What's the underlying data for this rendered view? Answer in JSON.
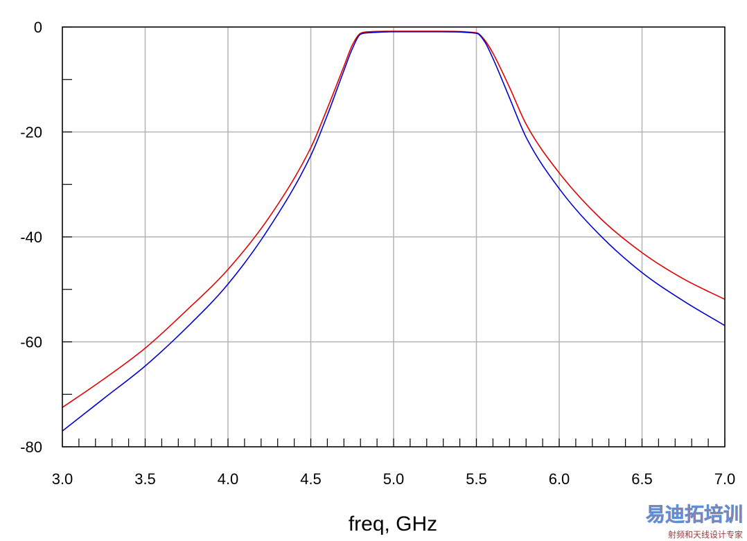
{
  "chart_data": {
    "type": "line",
    "title": "",
    "xlabel": "freq, GHz",
    "ylabel": "",
    "xlim": [
      3.0,
      7.0
    ],
    "ylim": [
      -80,
      0
    ],
    "x_ticks": [
      "3.0",
      "3.5",
      "4.0",
      "4.5",
      "5.0",
      "5.5",
      "6.0",
      "6.5",
      "7.0"
    ],
    "y_ticks": [
      "0",
      "-20",
      "-40",
      "-60",
      "-80"
    ],
    "grid": true,
    "series": [
      {
        "color": "#e00000",
        "x": [
          3.0,
          3.25,
          3.5,
          3.75,
          4.0,
          4.25,
          4.5,
          4.6,
          4.7,
          4.75,
          4.8,
          4.85,
          5.0,
          5.25,
          5.5,
          5.55,
          5.6,
          5.7,
          5.8,
          6.0,
          6.25,
          6.5,
          6.75,
          7.0
        ],
        "y": [
          -72.5,
          -67.1,
          -61.2,
          -54.0,
          -46.2,
          -36.2,
          -23.0,
          -15.5,
          -7.5,
          -3.5,
          -1.2,
          -0.9,
          -0.8,
          -0.8,
          -1.1,
          -2.5,
          -5.0,
          -11.5,
          -18.5,
          -27.8,
          -36.5,
          -43.0,
          -48.0,
          -51.9
        ]
      },
      {
        "color": "#0000cc",
        "x": [
          3.0,
          3.25,
          3.5,
          3.75,
          4.0,
          4.25,
          4.5,
          4.6,
          4.7,
          4.75,
          4.8,
          4.85,
          5.0,
          5.25,
          5.5,
          5.55,
          5.6,
          5.7,
          5.8,
          6.0,
          6.25,
          6.5,
          6.75,
          7.0
        ],
        "y": [
          -77.0,
          -70.8,
          -64.6,
          -57.3,
          -49.0,
          -38.2,
          -24.5,
          -16.8,
          -8.3,
          -4.2,
          -1.4,
          -1.1,
          -0.9,
          -0.9,
          -1.2,
          -2.8,
          -6.0,
          -13.5,
          -21.0,
          -30.8,
          -39.8,
          -46.8,
          -52.2,
          -56.9
        ]
      }
    ]
  },
  "watermark": {
    "main": "易迪拓培训",
    "sub": "射频和天线设计专家",
    "color_main": "#e06666",
    "color_accent": "#5b8fd6"
  }
}
